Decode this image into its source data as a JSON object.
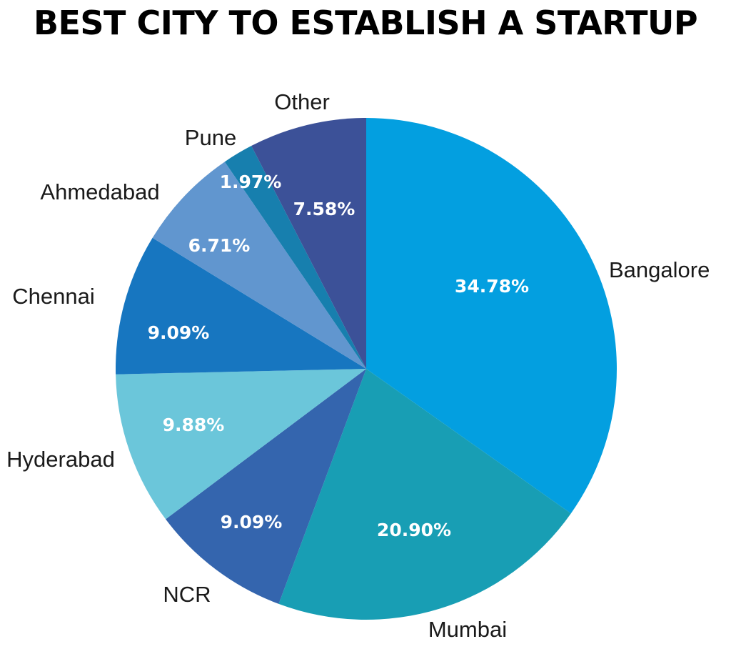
{
  "title": "BEST CITY TO ESTABLISH A STARTUP",
  "chart_data": {
    "type": "pie",
    "title": "BEST CITY TO ESTABLISH A STARTUP",
    "start": "12 o'clock",
    "direction": "clockwise",
    "legend": "none (labels outside slices)",
    "slices": [
      {
        "label": "Bangalore",
        "value": 34.78,
        "value_label": "34.78%",
        "color": "#039fe0"
      },
      {
        "label": "Mumbai",
        "value": 20.9,
        "value_label": "20.90%",
        "color": "#189eb4"
      },
      {
        "label": "NCR",
        "value": 9.09,
        "value_label": "9.09%",
        "color": "#3465ae"
      },
      {
        "label": "Hyderabad",
        "value": 9.88,
        "value_label": "9.88%",
        "color": "#6bc6da"
      },
      {
        "label": "Chennai",
        "value": 9.09,
        "value_label": "9.09%",
        "color": "#1776c0"
      },
      {
        "label": "Ahmedabad",
        "value": 6.71,
        "value_label": "6.71%",
        "color": "#6196cf"
      },
      {
        "label": "Pune",
        "value": 1.97,
        "value_label": "1.97%",
        "color": "#177fae"
      },
      {
        "label": "Other",
        "value": 7.58,
        "value_label": "7.58%",
        "color": "#3c5198"
      }
    ]
  }
}
